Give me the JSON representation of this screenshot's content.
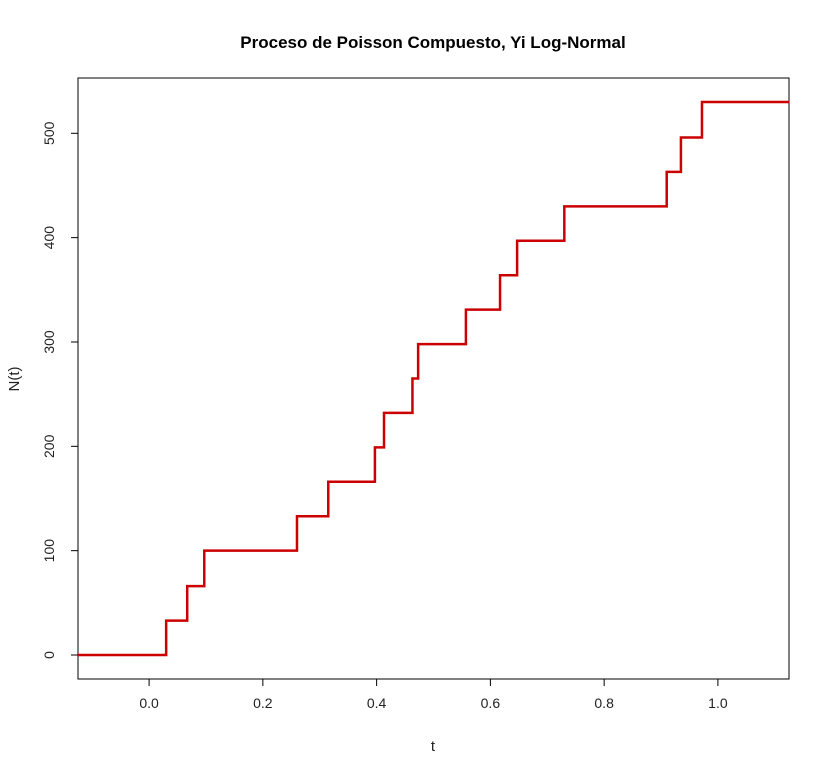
{
  "chart_data": {
    "type": "line",
    "title": "Proceso de Poisson Compuesto, Yi Log-Normal",
    "xlabel": "t",
    "ylabel": "N(t)",
    "xlim": [
      -0.125,
      1.125
    ],
    "ylim": [
      -23,
      553
    ],
    "grid": false,
    "x_ticks": [
      0.0,
      0.2,
      0.4,
      0.6,
      0.8,
      1.0
    ],
    "x_tick_labels": [
      "0.0",
      "0.2",
      "0.4",
      "0.6",
      "0.8",
      "1.0"
    ],
    "y_ticks": [
      0,
      100,
      200,
      300,
      400,
      500
    ],
    "y_tick_labels": [
      "0",
      "100",
      "200",
      "300",
      "400",
      "500"
    ],
    "series": [
      {
        "step": "post",
        "color": "#cc0000",
        "x": [
          -0.125,
          0.03,
          0.067,
          0.097,
          0.26,
          0.315,
          0.397,
          0.413,
          0.463,
          0.473,
          0.557,
          0.617,
          0.647,
          0.73,
          0.91,
          0.935,
          0.972,
          1.125
        ],
        "y": [
          0,
          33,
          66,
          100,
          133,
          166,
          199,
          232,
          265,
          298,
          331,
          364,
          397,
          430,
          463,
          496,
          530,
          530
        ]
      }
    ]
  }
}
